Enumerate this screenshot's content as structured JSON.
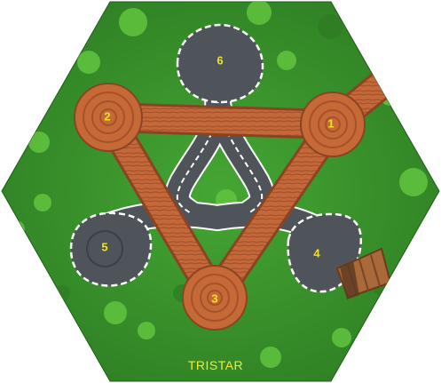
{
  "board": {
    "title": "TRISTAR",
    "colors": {
      "grass": "#3f9a2e",
      "grass_dark": "#2f7a24",
      "foliage": "#5fc03e",
      "road": "#4f545b",
      "road_edge": "#ffffff",
      "wood": "#c56a36",
      "wood_dark": "#8a4422",
      "label": "#f2e21c",
      "title": "#f4ec2c"
    },
    "nodes": [
      {
        "id": "1",
        "label": "1"
      },
      {
        "id": "2",
        "label": "2"
      },
      {
        "id": "3",
        "label": "3"
      },
      {
        "id": "4",
        "label": "4"
      },
      {
        "id": "5",
        "label": "5"
      },
      {
        "id": "6",
        "label": "6"
      }
    ],
    "icons": {
      "board": "hexagon-board-icon",
      "bridge": "wooden-bridge-icon"
    }
  }
}
